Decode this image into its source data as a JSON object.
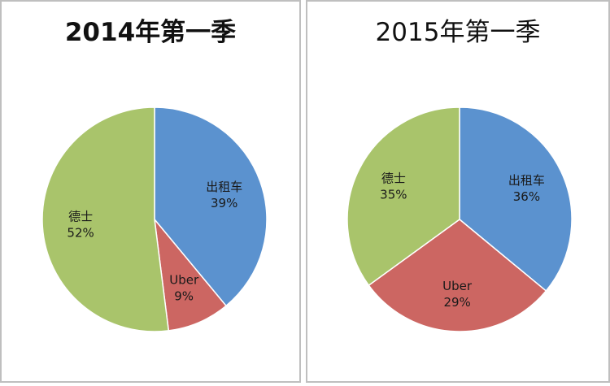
{
  "chart_data": [
    {
      "type": "pie",
      "title": "2014年第一季",
      "slices": [
        {
          "name": "出租车",
          "value": 39,
          "label": "39%",
          "color": "#5b92cf"
        },
        {
          "name": "Uber",
          "value": 9,
          "label": "9%",
          "color": "#cc6662"
        },
        {
          "name": "德士",
          "value": 52,
          "label": "52%",
          "color": "#a9c46b"
        }
      ]
    },
    {
      "type": "pie",
      "title": "2015年第一季",
      "slices": [
        {
          "name": "出租车",
          "value": 36,
          "label": "36%",
          "color": "#5b92cf"
        },
        {
          "name": "Uber",
          "value": 29,
          "label": "29%",
          "color": "#cc6662"
        },
        {
          "name": "德士",
          "value": 35,
          "label": "35%",
          "color": "#a9c46b"
        }
      ]
    }
  ]
}
